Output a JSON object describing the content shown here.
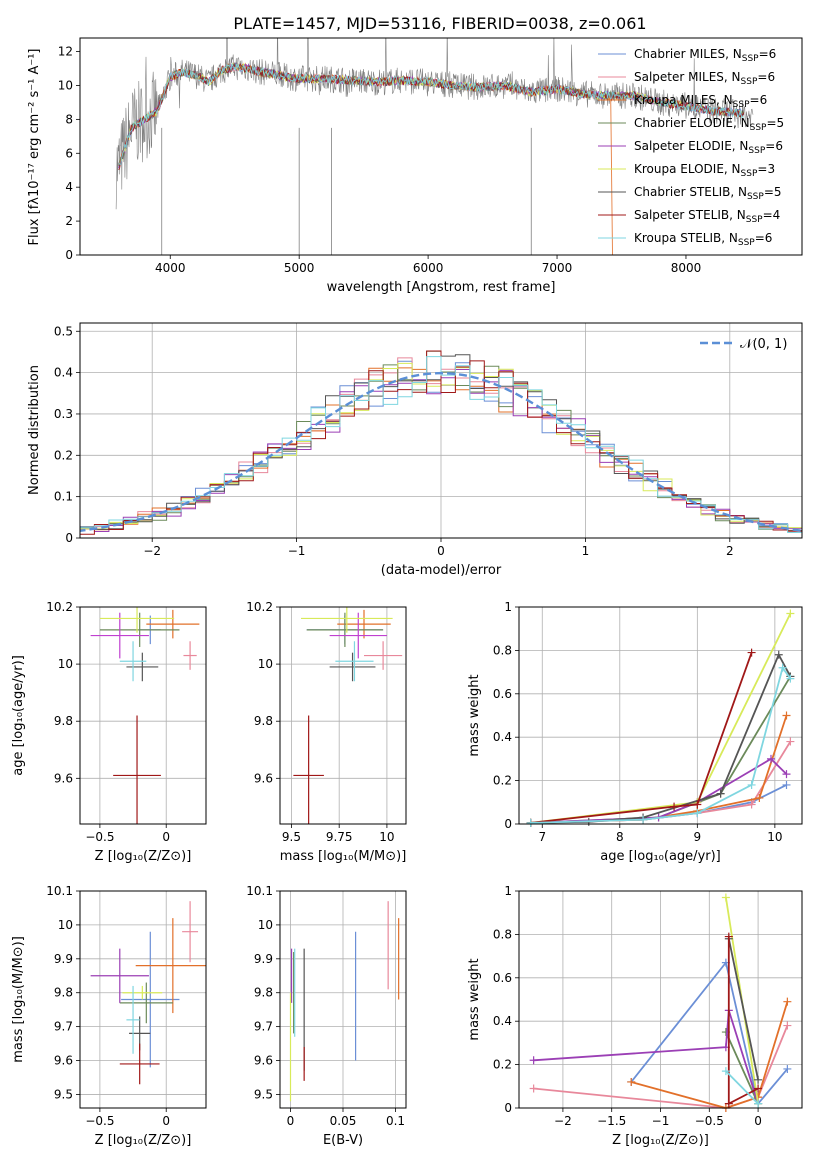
{
  "figure": {
    "title": "PLATE=1457, MJD=53116, FIBERID=0038, z=0.061"
  },
  "series_legend": [
    {
      "label": "Chabrier MILES, N",
      "sub": "SSP",
      "suffix": "=6",
      "color": "#6b8fd6"
    },
    {
      "label": "Salpeter MILES, N",
      "sub": "SSP",
      "suffix": "=6",
      "color": "#e8889b"
    },
    {
      "label": "Kroupa MILES, N",
      "sub": "SSP",
      "suffix": "=6",
      "color": "#e2702a"
    },
    {
      "label": "Chabrier ELODIE, N",
      "sub": "SSP",
      "suffix": "=5",
      "color": "#6b8a5a"
    },
    {
      "label": "Salpeter ELODIE, N",
      "sub": "SSP",
      "suffix": "=6",
      "color": "#9b3fb5"
    },
    {
      "label": "Kroupa ELODIE, N",
      "sub": "SSP",
      "suffix": "=3",
      "color": "#d8ea5a"
    },
    {
      "label": "Chabrier STELIB, N",
      "sub": "SSP",
      "suffix": "=5",
      "color": "#555555"
    },
    {
      "label": "Salpeter STELIB, N",
      "sub": "SSP",
      "suffix": "=4",
      "color": "#a01818"
    },
    {
      "label": "Kroupa STELIB, N",
      "sub": "SSP",
      "suffix": "=6",
      "color": "#7fd6e0"
    }
  ],
  "chart_data": [
    {
      "panel": "spectrum",
      "type": "line",
      "xlabel": "wavelength [Angstrom, rest frame]",
      "ylabel": "Flux [fλ10⁻¹⁷ erg cm⁻² s⁻¹ A⁻¹]",
      "xlim": [
        3300,
        8900
      ],
      "ylim": [
        0,
        12.8
      ],
      "xticks": [
        4000,
        5000,
        6000,
        7000,
        8000
      ],
      "yticks": [
        0,
        2,
        4,
        6,
        8,
        10,
        12
      ],
      "data_color": "#808080",
      "model_x": [
        3600,
        3700,
        3800,
        3900,
        4000,
        4100,
        4200,
        4300,
        4400,
        4500,
        4600,
        4700,
        4800,
        4900,
        5000,
        5200,
        5400,
        5600,
        5800,
        6000,
        6200,
        6400,
        6600,
        6800,
        7000,
        7200,
        7400,
        7600,
        7800,
        8000,
        8200,
        8400,
        8600,
        8800
      ],
      "model_y": [
        5.2,
        7.5,
        8.0,
        8.5,
        10.5,
        10.8,
        10.6,
        10.2,
        10.9,
        11.1,
        11.0,
        10.8,
        10.7,
        10.5,
        10.4,
        10.4,
        10.3,
        10.2,
        10.3,
        10.2,
        10.0,
        9.9,
        10.0,
        9.6,
        9.8,
        9.5,
        9.4,
        9.4,
        9.0,
        8.8,
        8.5,
        8.4,
        8.0,
        8.2
      ],
      "grid": false,
      "legend": "top-right"
    },
    {
      "panel": "residuals",
      "type": "area",
      "xlabel": "(data-model)/error",
      "ylabel": "Normed distribution",
      "xlim": [
        -2.5,
        2.5
      ],
      "ylim": [
        0,
        0.52
      ],
      "xticks": [
        -2,
        -1,
        0,
        1,
        2
      ],
      "yticks": [
        0.0,
        0.1,
        0.2,
        0.3,
        0.4,
        0.5
      ],
      "legend_entry": "𝒩(0, 1)",
      "gauss_color": "#5b8fd6",
      "grid": true,
      "legend": "top-right"
    },
    {
      "panel": "age-vs-Z",
      "type": "scatter",
      "xlabel": "Z [log₁₀(Z/Z⊙)]",
      "ylabel": "age  [log₁₀(age/yr)]",
      "xlim": [
        -0.65,
        0.3
      ],
      "ylim": [
        9.44,
        10.2
      ],
      "xticks": [
        -0.5,
        0.0
      ],
      "yticks": [
        9.6,
        9.8,
        10.0,
        10.2
      ],
      "points": [
        {
          "x": -0.12,
          "y": 10.12,
          "xerr": 0.08,
          "yerr": 0.05,
          "c": "#6b8fd6"
        },
        {
          "x": 0.18,
          "y": 10.03,
          "xerr": 0.05,
          "yerr": 0.05,
          "c": "#e8889b"
        },
        {
          "x": 0.05,
          "y": 10.14,
          "xerr": 0.2,
          "yerr": 0.05,
          "c": "#e2702a"
        },
        {
          "x": -0.2,
          "y": 10.12,
          "xerr": 0.3,
          "yerr": 0.06,
          "c": "#6b8a5a"
        },
        {
          "x": -0.35,
          "y": 10.1,
          "xerr": 0.22,
          "yerr": 0.08,
          "c": "#c040d0"
        },
        {
          "x": -0.22,
          "y": 10.16,
          "xerr": 0.28,
          "yerr": 0.05,
          "c": "#d8ea5a"
        },
        {
          "x": -0.18,
          "y": 9.99,
          "xerr": 0.12,
          "yerr": 0.05,
          "c": "#555555"
        },
        {
          "x": -0.22,
          "y": 9.61,
          "xerr": 0.18,
          "yerr": 0.21,
          "c": "#a01818"
        },
        {
          "x": -0.25,
          "y": 10.01,
          "xerr": 0.1,
          "yerr": 0.07,
          "c": "#7fd6e0"
        }
      ]
    },
    {
      "panel": "age-vs-mass",
      "type": "scatter",
      "xlabel": "mass [log₁₀(M/M⊙)]",
      "ylabel": "",
      "xlim": [
        9.44,
        10.1
      ],
      "ylim": [
        9.44,
        10.2
      ],
      "xticks": [
        9.5,
        9.75,
        10.0
      ],
      "yticks": [
        9.6,
        9.8,
        10.0,
        10.2
      ],
      "points": [
        {
          "x": 9.78,
          "y": 10.12,
          "xerr": 0.2,
          "yerr": 0.05,
          "c": "#6b8fd6"
        },
        {
          "x": 9.98,
          "y": 10.03,
          "xerr": 0.1,
          "yerr": 0.05,
          "c": "#e8889b"
        },
        {
          "x": 9.88,
          "y": 10.14,
          "xerr": 0.14,
          "yerr": 0.05,
          "c": "#e2702a"
        },
        {
          "x": 9.78,
          "y": 10.12,
          "xerr": 0.2,
          "yerr": 0.06,
          "c": "#6b8a5a"
        },
        {
          "x": 9.85,
          "y": 10.1,
          "xerr": 0.15,
          "yerr": 0.08,
          "c": "#c040d0"
        },
        {
          "x": 9.79,
          "y": 10.16,
          "xerr": 0.24,
          "yerr": 0.05,
          "c": "#d8ea5a"
        },
        {
          "x": 9.82,
          "y": 9.99,
          "xerr": 0.12,
          "yerr": 0.05,
          "c": "#555555"
        },
        {
          "x": 9.59,
          "y": 9.61,
          "xerr": 0.08,
          "yerr": 0.21,
          "c": "#a01818"
        },
        {
          "x": 9.83,
          "y": 10.01,
          "xerr": 0.1,
          "yerr": 0.07,
          "c": "#7fd6e0"
        }
      ]
    },
    {
      "panel": "massweight-vs-age",
      "type": "line",
      "xlabel": "age  [log₁₀(age/yr)]",
      "ylabel": "mass weight",
      "xlim": [
        6.7,
        10.35
      ],
      "ylim": [
        0,
        1.0
      ],
      "xticks": [
        7,
        8,
        9,
        10
      ],
      "yticks": [
        0.0,
        0.2,
        0.4,
        0.6,
        0.8,
        1.0
      ],
      "grid": true,
      "series": [
        {
          "name": "Chabrier MILES",
          "c": "#6b8fd6",
          "x": [
            6.85,
            8.3,
            9.0,
            9.7,
            10.15
          ],
          "y": [
            0.005,
            0.02,
            0.05,
            0.1,
            0.18
          ]
        },
        {
          "name": "Salpeter MILES",
          "c": "#e8889b",
          "x": [
            6.85,
            8.3,
            9.0,
            9.7,
            10.2
          ],
          "y": [
            0.005,
            0.02,
            0.05,
            0.09,
            0.38
          ]
        },
        {
          "name": "Kroupa MILES",
          "c": "#e2702a",
          "x": [
            6.85,
            8.3,
            9.0,
            9.8,
            10.15
          ],
          "y": [
            0.005,
            0.02,
            0.06,
            0.12,
            0.5
          ]
        },
        {
          "name": "Chabrier ELODIE",
          "c": "#6b8a5a",
          "x": [
            6.85,
            8.5,
            9.3,
            10.2
          ],
          "y": [
            0.005,
            0.03,
            0.14,
            0.68
          ]
        },
        {
          "name": "Salpeter ELODIE",
          "c": "#9b3fb5",
          "x": [
            6.85,
            8.5,
            9.0,
            9.95,
            10.15
          ],
          "y": [
            0.005,
            0.03,
            0.1,
            0.3,
            0.23
          ]
        },
        {
          "name": "Kroupa ELODIE",
          "c": "#d8ea5a",
          "x": [
            6.85,
            9.0,
            10.2
          ],
          "y": [
            0.005,
            0.1,
            0.97
          ]
        },
        {
          "name": "Chabrier STELIB",
          "c": "#555555",
          "x": [
            6.85,
            7.6,
            8.3,
            9.3,
            10.05,
            10.2
          ],
          "y": [
            0.005,
            0.01,
            0.03,
            0.14,
            0.78,
            0.68
          ]
        },
        {
          "name": "Salpeter STELIB",
          "c": "#a01818",
          "x": [
            6.85,
            8.7,
            9.0,
            9.7
          ],
          "y": [
            0.005,
            0.08,
            0.09,
            0.79
          ]
        },
        {
          "name": "Kroupa STELIB",
          "c": "#7fd6e0",
          "x": [
            6.85,
            8.3,
            9.0,
            9.7,
            10.1,
            10.2
          ],
          "y": [
            0.005,
            0.02,
            0.05,
            0.18,
            0.72,
            0.67
          ]
        }
      ]
    },
    {
      "panel": "mass-vs-Z",
      "type": "scatter",
      "xlabel": "Z [log₁₀(Z/Z⊙)]",
      "ylabel": "mass [log₁₀(M/M⊙)]",
      "xlim": [
        -0.65,
        0.3
      ],
      "ylim": [
        9.46,
        10.1
      ],
      "xticks": [
        -0.5,
        0.0
      ],
      "yticks": [
        9.5,
        9.6,
        9.7,
        9.8,
        9.9,
        10.0,
        10.1
      ],
      "points": [
        {
          "x": -0.12,
          "y": 9.78,
          "xerr": 0.22,
          "yerr": 0.2,
          "c": "#6b8fd6"
        },
        {
          "x": 0.18,
          "y": 9.98,
          "xerr": 0.06,
          "yerr": 0.09,
          "c": "#e8889b"
        },
        {
          "x": 0.05,
          "y": 9.88,
          "xerr": 0.28,
          "yerr": 0.14,
          "c": "#e2702a"
        },
        {
          "x": -0.15,
          "y": 9.77,
          "xerr": 0.2,
          "yerr": 0.06,
          "c": "#6b8a5a"
        },
        {
          "x": -0.35,
          "y": 9.85,
          "xerr": 0.22,
          "yerr": 0.08,
          "c": "#9b3fb5"
        },
        {
          "x": -0.18,
          "y": 9.8,
          "xerr": 0.15,
          "yerr": 0.02,
          "c": "#d8ea5a"
        },
        {
          "x": -0.2,
          "y": 9.68,
          "xerr": 0.08,
          "yerr": 0.05,
          "c": "#555555"
        },
        {
          "x": -0.2,
          "y": 9.59,
          "xerr": 0.15,
          "yerr": 0.06,
          "c": "#a01818"
        },
        {
          "x": -0.25,
          "y": 9.72,
          "xerr": 0.05,
          "yerr": 0.1,
          "c": "#7fd6e0"
        }
      ]
    },
    {
      "panel": "mass-vs-EBV",
      "type": "scatter",
      "xlabel": "E(B-V)",
      "ylabel": "",
      "xlim": [
        -0.01,
        0.11
      ],
      "ylim": [
        9.46,
        10.1
      ],
      "xticks": [
        0.0,
        0.05,
        0.1
      ],
      "yticks": [
        9.5,
        9.6,
        9.7,
        9.8,
        9.9,
        10.0,
        10.1
      ],
      "points": [
        {
          "x": 0.062,
          "y": 9.79,
          "xerr": 0.0,
          "yerr": 0.19,
          "c": "#6b8fd6"
        },
        {
          "x": 0.093,
          "y": 9.94,
          "xerr": 0.0,
          "yerr": 0.13,
          "c": "#e8889b"
        },
        {
          "x": 0.103,
          "y": 9.9,
          "xerr": 0.0,
          "yerr": 0.12,
          "c": "#e2702a"
        },
        {
          "x": 0.003,
          "y": 9.8,
          "xerr": 0.0,
          "yerr": 0.12,
          "c": "#6b8a5a"
        },
        {
          "x": 0.001,
          "y": 9.85,
          "xerr": 0.0,
          "yerr": 0.08,
          "c": "#9b3fb5"
        },
        {
          "x": 0.0,
          "y": 9.64,
          "xerr": 0.0,
          "yerr": 0.16,
          "c": "#d8ea5a"
        },
        {
          "x": 0.013,
          "y": 9.75,
          "xerr": 0.0,
          "yerr": 0.18,
          "c": "#555555"
        },
        {
          "x": 0.013,
          "y": 9.59,
          "xerr": 0.0,
          "yerr": 0.05,
          "c": "#a01818"
        },
        {
          "x": 0.004,
          "y": 9.8,
          "xerr": 0.0,
          "yerr": 0.13,
          "c": "#7fd6e0"
        }
      ]
    },
    {
      "panel": "massweight-vs-Z",
      "type": "line",
      "xlabel": "Z [log₁₀(Z/Z⊙)]",
      "ylabel": "mass weight",
      "xlim": [
        -2.45,
        0.45
      ],
      "ylim": [
        0,
        1.0
      ],
      "xticks": [
        -2.0,
        -1.5,
        -1.0,
        -0.5,
        0.0
      ],
      "yticks": [
        0.0,
        0.2,
        0.4,
        0.6,
        0.8,
        1.0
      ],
      "grid": true,
      "series": [
        {
          "name": "Chabrier MILES",
          "c": "#6b8fd6",
          "x": [
            -1.3,
            -0.33,
            0.0,
            0.3
          ],
          "y": [
            0.12,
            0.67,
            0.02,
            0.18
          ]
        },
        {
          "name": "Salpeter MILES",
          "c": "#e8889b",
          "x": [
            -2.3,
            -0.33,
            0.0,
            0.3
          ],
          "y": [
            0.09,
            0.0,
            0.05,
            0.38
          ]
        },
        {
          "name": "Kroupa MILES",
          "c": "#e2702a",
          "x": [
            -1.3,
            -0.33,
            0.0,
            0.3
          ],
          "y": [
            0.12,
            0.0,
            0.05,
            0.49
          ]
        },
        {
          "name": "Chabrier ELODIE",
          "c": "#6b8a5a",
          "x": [
            -0.33,
            0.0
          ],
          "y": [
            0.35,
            0.02
          ]
        },
        {
          "name": "Salpeter ELODIE",
          "c": "#9b3fb5",
          "x": [
            -2.3,
            -0.33,
            -0.3,
            0.0
          ],
          "y": [
            0.22,
            0.28,
            0.45,
            0.02
          ]
        },
        {
          "name": "Kroupa ELODIE",
          "c": "#d8ea5a",
          "x": [
            -0.33,
            0.0
          ],
          "y": [
            0.97,
            0.02
          ]
        },
        {
          "name": "Chabrier STELIB",
          "c": "#555555",
          "x": [
            -0.3,
            0.0
          ],
          "y": [
            0.78,
            0.13
          ]
        },
        {
          "name": "Salpeter STELIB",
          "c": "#a01818",
          "x": [
            -0.3,
            -0.3,
            0.0
          ],
          "y": [
            0.79,
            0.02,
            0.09
          ]
        },
        {
          "name": "Kroupa STELIB",
          "c": "#7fd6e0",
          "x": [
            -0.33,
            0.0
          ],
          "y": [
            0.17,
            0.02
          ]
        }
      ]
    }
  ]
}
